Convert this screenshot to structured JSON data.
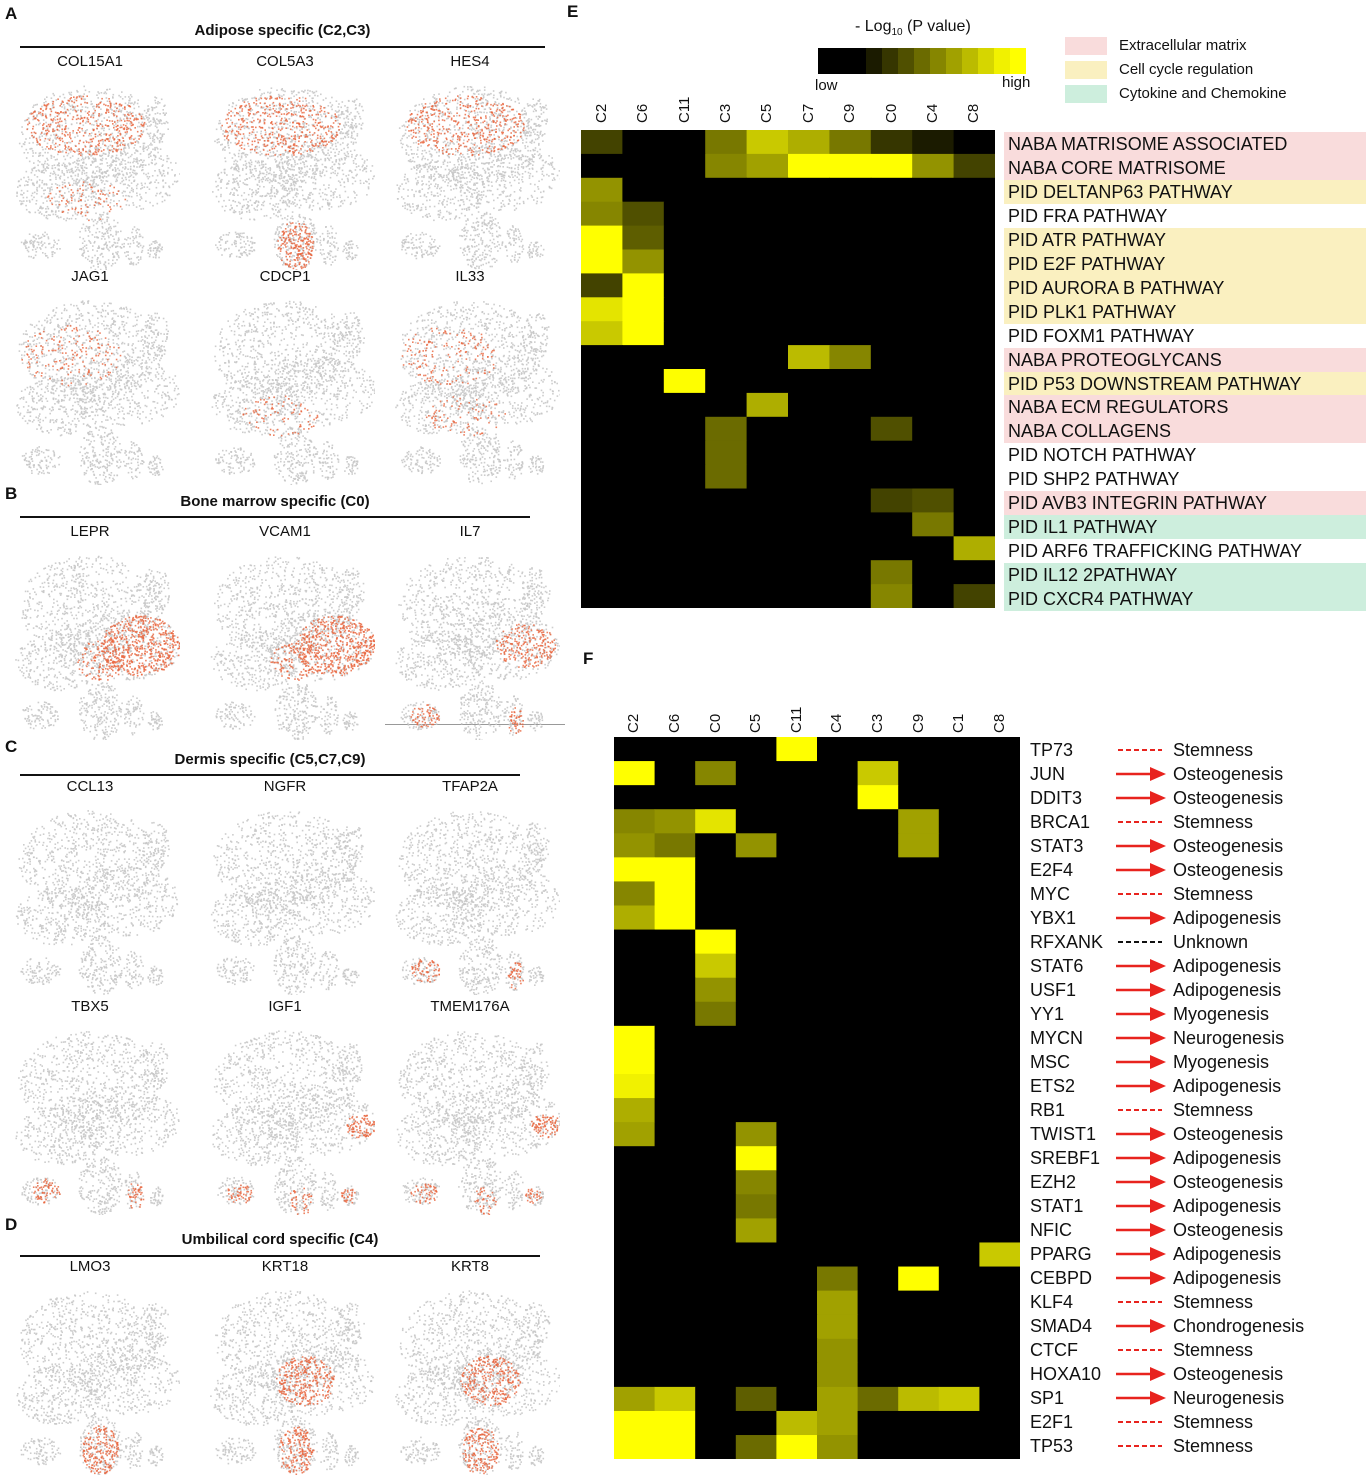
{
  "panels": {
    "A": {
      "letter": "A",
      "title": "Adipose specific (C2,C3)",
      "genes": [
        "COL15A1",
        "COL5A3",
        "HES4",
        "JAG1",
        "CDCP1",
        "IL33"
      ]
    },
    "B": {
      "letter": "B",
      "title": "Bone marrow specific (C0)",
      "genes": [
        "LEPR",
        "VCAM1",
        "IL7"
      ]
    },
    "C": {
      "letter": "C",
      "title": "Dermis specific (C5,C7,C9)",
      "genes": [
        "CCL13",
        "NGFR",
        "TFAP2A",
        "TBX5",
        "IGF1",
        "TMEM176A"
      ]
    },
    "D": {
      "letter": "D",
      "title": "Umbilical cord specific (C4)",
      "genes": [
        "LMO3",
        "KRT18",
        "KRT8"
      ]
    }
  },
  "colors": {
    "gray_cells": "#c8c8c8",
    "red_cells": "#e8643c",
    "heat_low": "#000000",
    "heat_high": "#ffff00",
    "ecm": "#f9dcdc",
    "cellcycle": "#faf0c0",
    "cytokine": "#cdeedd",
    "arrow_red": "#e8231e"
  },
  "panelE": {
    "letter": "E",
    "legend_title_prefix": "- Log",
    "legend_title_sub": "10",
    "legend_title_suffix": " (P value)",
    "legend_low": "low",
    "legend_high": "high",
    "category_legend": [
      {
        "label": "Extracellular matrix",
        "color": "#f9dcdc"
      },
      {
        "label": "Cell cycle regulation",
        "color": "#faf0c0"
      },
      {
        "label": "Cytokine and Chemokine",
        "color": "#cdeedd"
      }
    ],
    "columns": [
      "C2",
      "C6",
      "C11",
      "C3",
      "C5",
      "C7",
      "C9",
      "C0",
      "C4",
      "C8"
    ],
    "rows": [
      {
        "label": "NABA  MATRISOME ASSOCIATED",
        "cat": "ecm"
      },
      {
        "label": "NABA CORE MATRISOME",
        "cat": "ecm"
      },
      {
        "label": "PID DELTANP63  PATHWAY",
        "cat": "cellcycle"
      },
      {
        "label": "PID FRA  PATHWAY",
        "cat": "none"
      },
      {
        "label": "PID ATR PATHWAY",
        "cat": "cellcycle"
      },
      {
        "label": "PID E2F PATHWAY",
        "cat": "cellcycle"
      },
      {
        "label": "PID AURORA B PATHWAY",
        "cat": "cellcycle"
      },
      {
        "label": "PID PLK1 PATHWAY",
        "cat": "cellcycle"
      },
      {
        "label": "PID FOXM1 PATHWAY",
        "cat": "none"
      },
      {
        "label": "NABA PROTEOGLYCANS",
        "cat": "ecm"
      },
      {
        "label": "PID P53 DOWNSTREAM PATHWAY",
        "cat": "cellcycle"
      },
      {
        "label": "NABA ECM REGULATORS",
        "cat": "ecm"
      },
      {
        "label": "NABA COLLAGENS",
        "cat": "ecm"
      },
      {
        "label": "PID NOTCH PATHWAY",
        "cat": "none"
      },
      {
        "label": "PID SHP2 PATHWAY",
        "cat": "none"
      },
      {
        "label": "PID AVB3 INTEGRIN PATHWAY",
        "cat": "ecm"
      },
      {
        "label": "PID IL1 PATHWAY",
        "cat": "cytokine"
      },
      {
        "label": "PID ARF6 TRAFFICKING PATHWAY",
        "cat": "none"
      },
      {
        "label": "PID IL12 2PATHWAY",
        "cat": "cytokine"
      },
      {
        "label": "PID CXCR4 PATHWAY",
        "cat": "cytokine"
      }
    ],
    "values": [
      [
        0.25,
        0,
        0,
        0.45,
        0.75,
        0.65,
        0.45,
        0.2,
        0.1,
        0
      ],
      [
        0,
        0,
        0,
        0.5,
        0.6,
        1,
        1,
        1,
        0.55,
        0.25
      ],
      [
        0.55,
        0,
        0,
        0,
        0,
        0,
        0,
        0,
        0,
        0
      ],
      [
        0.5,
        0.3,
        0,
        0,
        0,
        0,
        0,
        0,
        0,
        0
      ],
      [
        1,
        0.35,
        0,
        0,
        0,
        0,
        0,
        0,
        0,
        0
      ],
      [
        1,
        0.55,
        0,
        0,
        0,
        0,
        0,
        0,
        0,
        0
      ],
      [
        0.25,
        1,
        0,
        0,
        0,
        0,
        0,
        0,
        0,
        0
      ],
      [
        0.85,
        1,
        0,
        0,
        0,
        0,
        0,
        0,
        0,
        0
      ],
      [
        0.75,
        1,
        0,
        0,
        0,
        0,
        0,
        0,
        0,
        0
      ],
      [
        0,
        0,
        0,
        0,
        0,
        0.7,
        0.5,
        0,
        0,
        0
      ],
      [
        0,
        0,
        0.95,
        0,
        0,
        0,
        0,
        0,
        0,
        0
      ],
      [
        0,
        0,
        0,
        0,
        0.65,
        0,
        0,
        0,
        0,
        0
      ],
      [
        0,
        0,
        0,
        0.4,
        0,
        0,
        0,
        0.3,
        0,
        0
      ],
      [
        0,
        0,
        0,
        0.4,
        0,
        0,
        0,
        0,
        0,
        0
      ],
      [
        0,
        0,
        0,
        0.4,
        0,
        0,
        0,
        0,
        0,
        0
      ],
      [
        0,
        0,
        0,
        0,
        0,
        0,
        0,
        0.25,
        0.3,
        0
      ],
      [
        0,
        0,
        0,
        0,
        0,
        0,
        0,
        0,
        0.45,
        0
      ],
      [
        0,
        0,
        0,
        0,
        0,
        0,
        0,
        0,
        0,
        0.65
      ],
      [
        0,
        0,
        0,
        0,
        0,
        0,
        0,
        0.45,
        0,
        0
      ],
      [
        0,
        0,
        0,
        0,
        0,
        0,
        0,
        0.5,
        0,
        0.25
      ]
    ]
  },
  "panelF": {
    "letter": "F",
    "columns": [
      "C2",
      "C6",
      "C0",
      "C5",
      "C11",
      "C4",
      "C3",
      "C9",
      "C1",
      "C8"
    ],
    "rows": [
      {
        "tf": "TP73",
        "link": "dashed-red",
        "fate": "Stemness"
      },
      {
        "tf": "JUN",
        "link": "arrow",
        "fate": "Osteogenesis"
      },
      {
        "tf": "DDIT3",
        "link": "arrow",
        "fate": "Osteogenesis"
      },
      {
        "tf": "BRCA1",
        "link": "dashed-red",
        "fate": "Stemness"
      },
      {
        "tf": "STAT3",
        "link": "arrow",
        "fate": "Osteogenesis"
      },
      {
        "tf": "E2F4",
        "link": "arrow",
        "fate": "Osteogenesis"
      },
      {
        "tf": "MYC",
        "link": "dashed-red",
        "fate": "Stemness"
      },
      {
        "tf": "YBX1",
        "link": "arrow",
        "fate": "Adipogenesis"
      },
      {
        "tf": "RFXANK",
        "link": "dashed-black",
        "fate": "Unknown"
      },
      {
        "tf": "STAT6",
        "link": "arrow",
        "fate": "Adipogenesis"
      },
      {
        "tf": "USF1",
        "link": "arrow",
        "fate": "Adipogenesis"
      },
      {
        "tf": "YY1",
        "link": "arrow",
        "fate": "Myogenesis"
      },
      {
        "tf": "MYCN",
        "link": "arrow",
        "fate": "Neurogenesis"
      },
      {
        "tf": "MSC",
        "link": "arrow",
        "fate": "Myogenesis"
      },
      {
        "tf": "ETS2",
        "link": "arrow",
        "fate": "Adipogenesis"
      },
      {
        "tf": "RB1",
        "link": "dashed-red",
        "fate": "Stemness"
      },
      {
        "tf": "TWIST1",
        "link": "arrow",
        "fate": "Osteogenesis"
      },
      {
        "tf": "SREBF1",
        "link": "arrow",
        "fate": "Adipogenesis"
      },
      {
        "tf": "EZH2",
        "link": "arrow",
        "fate": "Osteogenesis"
      },
      {
        "tf": "STAT1",
        "link": "arrow",
        "fate": "Adipogenesis"
      },
      {
        "tf": "NFIC",
        "link": "arrow",
        "fate": "Osteogenesis"
      },
      {
        "tf": "PPARG",
        "link": "arrow",
        "fate": "Adipogenesis"
      },
      {
        "tf": "CEBPD",
        "link": "arrow",
        "fate": "Adipogenesis"
      },
      {
        "tf": "KLF4",
        "link": "dashed-red",
        "fate": "Stemness"
      },
      {
        "tf": "SMAD4",
        "link": "arrow",
        "fate": "Chondrogenesis"
      },
      {
        "tf": "CTCF",
        "link": "dashed-red",
        "fate": "Stemness"
      },
      {
        "tf": "HOXA10",
        "link": "arrow",
        "fate": "Osteogenesis"
      },
      {
        "tf": "SP1",
        "link": "arrow",
        "fate": "Neurogenesis"
      },
      {
        "tf": "E2F1",
        "link": "dashed-red",
        "fate": "Stemness"
      },
      {
        "tf": "TP53",
        "link": "dashed-red",
        "fate": "Stemness"
      }
    ],
    "values": [
      [
        0,
        0,
        0,
        0,
        1,
        0,
        0,
        0,
        0,
        0
      ],
      [
        1,
        0,
        0.5,
        0,
        0,
        0,
        0.75,
        0,
        0,
        0
      ],
      [
        0,
        0,
        0,
        0,
        0,
        0,
        1,
        0,
        0,
        0
      ],
      [
        0.5,
        0.55,
        0.85,
        0,
        0,
        0,
        0,
        0.6,
        0,
        0
      ],
      [
        0.55,
        0.45,
        0,
        0.55,
        0,
        0,
        0,
        0.6,
        0,
        0
      ],
      [
        1,
        1,
        0,
        0,
        0,
        0,
        0,
        0,
        0,
        0
      ],
      [
        0.5,
        1,
        0,
        0,
        0,
        0,
        0,
        0,
        0,
        0
      ],
      [
        0.65,
        1,
        0,
        0,
        0,
        0,
        0,
        0,
        0,
        0
      ],
      [
        0,
        0,
        1,
        0,
        0,
        0,
        0,
        0,
        0,
        0
      ],
      [
        0,
        0,
        0.75,
        0,
        0,
        0,
        0,
        0,
        0,
        0
      ],
      [
        0,
        0,
        0.55,
        0,
        0,
        0,
        0,
        0,
        0,
        0
      ],
      [
        0,
        0,
        0.45,
        0,
        0,
        0,
        0,
        0,
        0,
        0
      ],
      [
        1,
        0,
        0,
        0,
        0,
        0,
        0,
        0,
        0,
        0
      ],
      [
        0.95,
        0,
        0,
        0,
        0,
        0,
        0,
        0,
        0,
        0
      ],
      [
        0.9,
        0,
        0,
        0,
        0,
        0,
        0,
        0,
        0,
        0
      ],
      [
        0.65,
        0,
        0,
        0,
        0,
        0,
        0,
        0,
        0,
        0
      ],
      [
        0.6,
        0,
        0,
        0.55,
        0,
        0,
        0,
        0,
        0,
        0
      ],
      [
        0,
        0,
        0,
        0.95,
        0,
        0,
        0,
        0,
        0,
        0
      ],
      [
        0,
        0,
        0,
        0.5,
        0,
        0,
        0,
        0,
        0,
        0
      ],
      [
        0,
        0,
        0,
        0.45,
        0,
        0,
        0,
        0,
        0,
        0
      ],
      [
        0,
        0,
        0,
        0.6,
        0,
        0,
        0,
        0,
        0,
        0
      ],
      [
        0,
        0,
        0,
        0,
        0,
        0,
        0,
        0,
        0,
        0.75
      ],
      [
        0,
        0,
        0,
        0,
        0,
        0.45,
        0,
        1,
        0,
        0
      ],
      [
        0,
        0,
        0,
        0,
        0,
        0.6,
        0,
        0,
        0,
        0
      ],
      [
        0,
        0,
        0,
        0,
        0,
        0.6,
        0,
        0,
        0,
        0
      ],
      [
        0,
        0,
        0,
        0,
        0,
        0.55,
        0,
        0,
        0,
        0
      ],
      [
        0,
        0,
        0,
        0,
        0,
        0.55,
        0,
        0,
        0,
        0
      ],
      [
        0.6,
        0.75,
        0,
        0.35,
        0,
        0.6,
        0.4,
        0.7,
        0.75,
        0
      ],
      [
        1,
        1,
        0,
        0,
        0.7,
        0.6,
        0,
        0,
        0,
        0
      ],
      [
        1,
        1,
        0,
        0.4,
        1,
        0.55,
        0,
        0,
        0,
        0
      ]
    ]
  }
}
